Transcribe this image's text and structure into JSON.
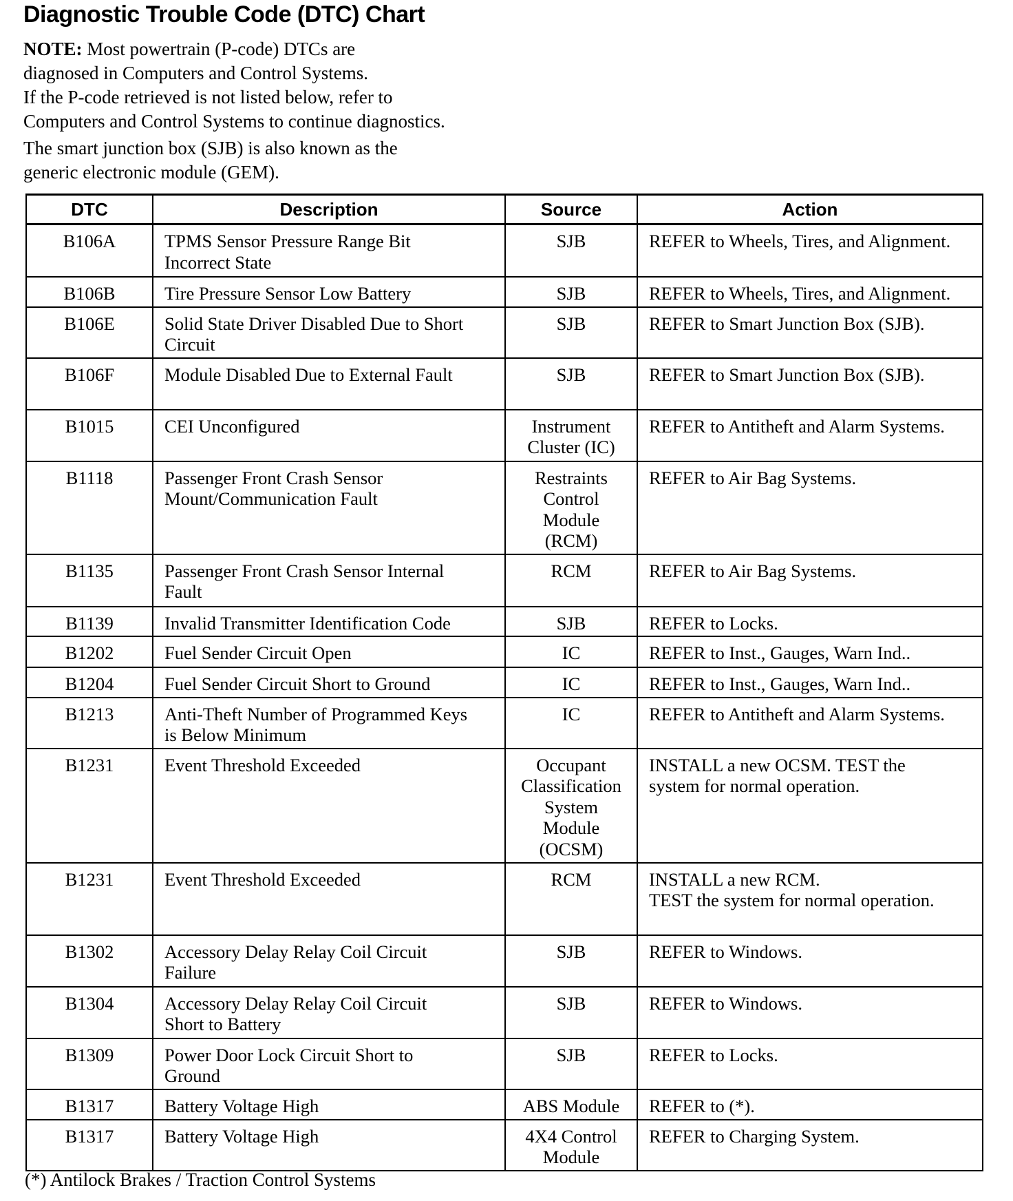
{
  "title": "Diagnostic Trouble Code (DTC) Chart",
  "note": {
    "label": "NOTE:",
    "lines": [
      " Most powertrain (P-code) DTCs are",
      "diagnosed in Computers and Control Systems.",
      "If the P-code retrieved is not listed below, refer to",
      "Computers and Control Systems to continue diagnostics."
    ],
    "sjb_lines": [
      "The smart junction box (SJB) is also known as the",
      "generic electronic module (GEM)."
    ]
  },
  "table": {
    "headers": [
      "DTC",
      "Description",
      "Source",
      "Action"
    ],
    "rows": [
      {
        "dtc": "B106A",
        "description": "TPMS Sensor Pressure Range Bit\nIncorrect State",
        "source": "SJB",
        "action": "REFER to Wheels, Tires, and Alignment."
      },
      {
        "dtc": "B106B",
        "description": "Tire Pressure Sensor Low Battery",
        "source": "SJB",
        "action": "REFER to Wheels, Tires, and Alignment."
      },
      {
        "dtc": "B106E",
        "description": "Solid State Driver Disabled Due to Short\nCircuit",
        "source": "SJB",
        "action": "REFER to Smart Junction Box (SJB)."
      },
      {
        "dtc": "B106F",
        "description": "Module Disabled Due to External Fault",
        "source": "SJB",
        "action": "REFER to Smart Junction Box (SJB)."
      },
      {
        "dtc": "B1015",
        "description": "CEI Unconfigured",
        "source": "Instrument\nCluster (IC)",
        "action": "REFER to Antitheft and Alarm Systems."
      },
      {
        "dtc": "B1118",
        "description": "Passenger Front Crash Sensor\nMount/Communication Fault",
        "source": "Restraints\nControl\nModule\n(RCM)",
        "action": "REFER to Air Bag Systems."
      },
      {
        "dtc": "B1135",
        "description": "Passenger Front Crash Sensor Internal\nFault",
        "source": "RCM",
        "action": "REFER to Air Bag Systems."
      },
      {
        "dtc": "B1139",
        "description": "Invalid Transmitter Identification Code",
        "source": "SJB",
        "action": "REFER to Locks."
      },
      {
        "dtc": "B1202",
        "description": "Fuel Sender Circuit Open",
        "source": "IC",
        "action": "REFER to Inst., Gauges, Warn Ind.."
      },
      {
        "dtc": "B1204",
        "description": "Fuel Sender Circuit Short to Ground",
        "source": "IC",
        "action": "REFER to Inst., Gauges, Warn Ind.."
      },
      {
        "dtc": "B1213",
        "description": "Anti-Theft Number of Programmed Keys\nis Below Minimum",
        "source": "IC",
        "action": "REFER to Antitheft and Alarm Systems."
      },
      {
        "dtc": "B1231",
        "description": "Event Threshold Exceeded",
        "source": "Occupant\nClassification\nSystem\nModule\n(OCSM)",
        "action": "INSTALL a new OCSM.  TEST the\nsystem for normal operation."
      },
      {
        "dtc": "B1231",
        "description": "Event Threshold Exceeded",
        "source": "RCM",
        "action": "INSTALL a new RCM.\nTEST the system for normal operation."
      },
      {
        "dtc": "B1302",
        "description": "Accessory Delay Relay Coil Circuit\nFailure",
        "source": "SJB",
        "action": "REFER to Windows."
      },
      {
        "dtc": "B1304",
        "description": "Accessory Delay Relay Coil Circuit\nShort to Battery",
        "source": "SJB",
        "action": "REFER to Windows."
      },
      {
        "dtc": "B1309",
        "description": "Power Door Lock Circuit Short to\nGround",
        "source": "SJB",
        "action": "REFER to Locks."
      },
      {
        "dtc": "B1317",
        "description": "Battery Voltage High",
        "source": "ABS Module",
        "action": "REFER to (*)."
      },
      {
        "dtc": "B1317",
        "description": "Battery Voltage High",
        "source": "4X4 Control\nModule",
        "action": "REFER to Charging System."
      }
    ]
  },
  "footnote": "(*) Antilock Brakes / Traction Control Systems"
}
